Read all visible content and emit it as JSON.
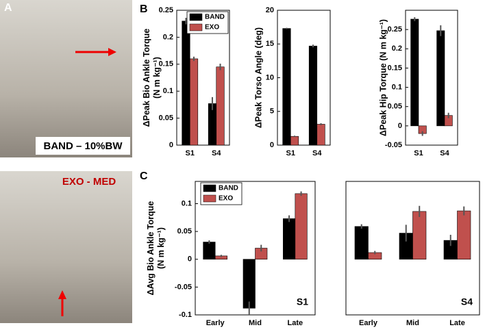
{
  "panels": [
    "A",
    "B",
    "C"
  ],
  "photos": [
    {
      "caption": "BAND – 10%BW"
    },
    {
      "caption": "EXO - MED"
    }
  ],
  "chart_data": [
    {
      "type": "bar",
      "ylabel": [
        "ΔPeak Bio Ankle Torque",
        "(N m kg⁻¹)"
      ],
      "categories": [
        "S1",
        "S4"
      ],
      "series": [
        {
          "name": "BAND",
          "color": "#000000",
          "values": [
            0.23,
            0.077
          ],
          "errors": [
            0.006,
            0.012
          ]
        },
        {
          "name": "EXO",
          "color": "#c0504d",
          "values": [
            0.16,
            0.145
          ],
          "errors": [
            0.004,
            0.006
          ]
        }
      ],
      "ylim": [
        0,
        0.25
      ],
      "yticks": [
        0,
        0.05,
        0.1,
        0.15,
        0.2,
        0.25
      ],
      "legend": "upper right"
    },
    {
      "type": "bar",
      "ylabel": "ΔPeak Torso Angle (deg)",
      "categories": [
        "S1",
        "S4"
      ],
      "series": [
        {
          "name": "BAND",
          "color": "#000000",
          "values": [
            17.3,
            14.7
          ],
          "errors": [
            0.1,
            0.2
          ]
        },
        {
          "name": "EXO",
          "color": "#c0504d",
          "values": [
            1.3,
            3.1
          ],
          "errors": [
            0.1,
            0.15
          ]
        }
      ],
      "ylim": [
        0,
        20
      ],
      "yticks": [
        0,
        5,
        10,
        15,
        20
      ]
    },
    {
      "type": "bar",
      "ylabel": "ΔPeak Hip Torque (N m kg⁻¹)",
      "categories": [
        "S1",
        "S4"
      ],
      "series": [
        {
          "name": "BAND",
          "color": "#000000",
          "values": [
            0.277,
            0.247
          ],
          "errors": [
            0.005,
            0.014
          ]
        },
        {
          "name": "EXO",
          "color": "#c0504d",
          "values": [
            -0.02,
            0.027
          ],
          "errors": [
            0.006,
            0.007
          ]
        }
      ],
      "ylim": [
        -0.05,
        0.3
      ],
      "yticks": [
        -0.05,
        0,
        0.05,
        0.1,
        0.15,
        0.2,
        0.25
      ]
    },
    {
      "type": "bar",
      "ylabel": [
        "ΔAvg Bio Ankle Torque",
        "(N m kg⁻¹)"
      ],
      "categories": [
        "Early",
        "Mid",
        "Late"
      ],
      "series": [
        {
          "name": "BAND",
          "color": "#000000",
          "values": [
            0.031,
            -0.088,
            0.073
          ],
          "errors": [
            0.003,
            0.012,
            0.006
          ]
        },
        {
          "name": "EXO",
          "color": "#c0504d",
          "values": [
            0.006,
            0.02,
            0.118
          ],
          "errors": [
            0.002,
            0.006,
            0.004
          ]
        }
      ],
      "ylim": [
        -0.1,
        0.14
      ],
      "yticks": [
        -0.1,
        -0.05,
        0,
        0.05,
        0.1
      ],
      "legend": "upper left",
      "annotation": "S1"
    },
    {
      "type": "bar",
      "categories": [
        "Early",
        "Mid",
        "Late"
      ],
      "series": [
        {
          "color": "#000000",
          "values": [
            0.059,
            0.047,
            0.034
          ],
          "errors": [
            0.004,
            0.015,
            0.01
          ]
        },
        {
          "color": "#c0504d",
          "values": [
            0.012,
            0.086,
            0.087
          ],
          "errors": [
            0.003,
            0.01,
            0.008
          ]
        }
      ],
      "ylim": [
        -0.1,
        0.14
      ],
      "annotation": "S4"
    }
  ]
}
